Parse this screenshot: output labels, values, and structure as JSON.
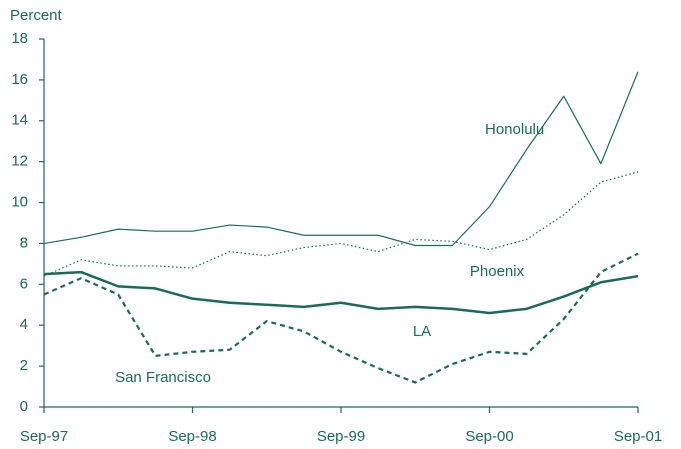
{
  "chart_data": {
    "type": "line",
    "y_label": "Percent",
    "categories": [
      "Sep-97",
      null,
      null,
      null,
      "Sep-98",
      null,
      null,
      null,
      "Sep-99",
      null,
      null,
      null,
      "Sep-00",
      null,
      null,
      null,
      "Sep-01"
    ],
    "ylim": [
      0,
      18
    ],
    "yticks": [
      0,
      2,
      4,
      6,
      8,
      10,
      12,
      14,
      16,
      18
    ],
    "series": [
      {
        "name": "Honolulu",
        "color": "#1b6b58",
        "line_style": "solid",
        "line_width": 1.2,
        "values": [
          8.0,
          8.3,
          8.7,
          8.6,
          8.6,
          8.9,
          8.8,
          8.4,
          8.4,
          8.4,
          7.9,
          7.9,
          9.8,
          12.6,
          15.2,
          11.9,
          16.4
        ]
      },
      {
        "name": "Phoenix",
        "color": "#1b6b58",
        "line_style": "dotted",
        "line_width": 1.2,
        "values": [
          6.4,
          7.2,
          6.9,
          6.9,
          6.8,
          7.6,
          7.4,
          7.8,
          8.0,
          7.6,
          8.2,
          8.1,
          7.7,
          8.2,
          9.4,
          11.0,
          11.5
        ]
      },
      {
        "name": "LA",
        "color": "#1b6b58",
        "line_style": "solid",
        "line_width": 2.5,
        "values": [
          6.5,
          6.6,
          5.9,
          5.8,
          5.3,
          5.1,
          5.0,
          4.9,
          5.1,
          4.8,
          4.9,
          4.8,
          4.6,
          4.8,
          5.4,
          6.1,
          6.4
        ]
      },
      {
        "name": "San Francisco",
        "color": "#1b6b58",
        "line_style": "dashed",
        "line_width": 2.2,
        "values": [
          5.5,
          6.3,
          5.5,
          2.5,
          2.7,
          2.8,
          4.2,
          3.7,
          2.7,
          1.9,
          1.2,
          2.1,
          2.7,
          2.6,
          4.3,
          6.6,
          7.5
        ]
      }
    ]
  }
}
